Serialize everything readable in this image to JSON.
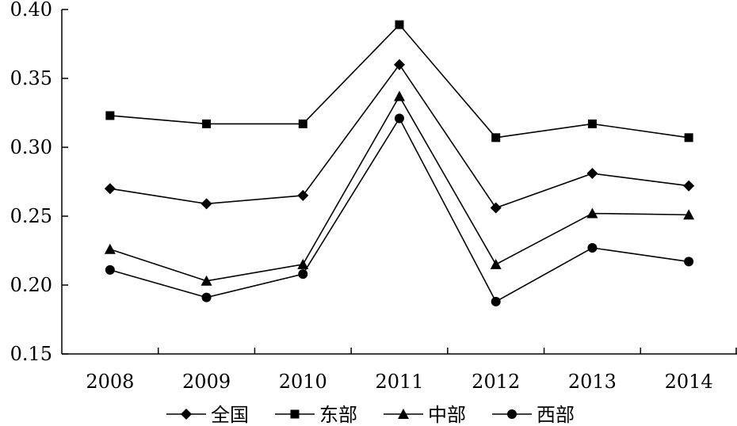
{
  "chart_data": {
    "type": "line",
    "categories": [
      "2008",
      "2009",
      "2010",
      "2011",
      "2012",
      "2013",
      "2014"
    ],
    "ylim": [
      0.15,
      0.4
    ],
    "yticks": [
      "0.15",
      "0.20",
      "0.25",
      "0.30",
      "0.35",
      "0.40"
    ],
    "grid": false,
    "legend_position": "bottom",
    "series": [
      {
        "name": "全国",
        "marker": "diamond",
        "values": [
          0.27,
          0.259,
          0.265,
          0.36,
          0.256,
          0.281,
          0.272
        ]
      },
      {
        "name": "东部",
        "marker": "square",
        "values": [
          0.323,
          0.317,
          0.317,
          0.389,
          0.307,
          0.317,
          0.307
        ]
      },
      {
        "name": "中部",
        "marker": "triangle",
        "values": [
          0.226,
          0.203,
          0.215,
          0.337,
          0.215,
          0.252,
          0.251
        ]
      },
      {
        "name": "西部",
        "marker": "circle",
        "values": [
          0.211,
          0.191,
          0.208,
          0.321,
          0.188,
          0.227,
          0.217
        ]
      }
    ]
  }
}
